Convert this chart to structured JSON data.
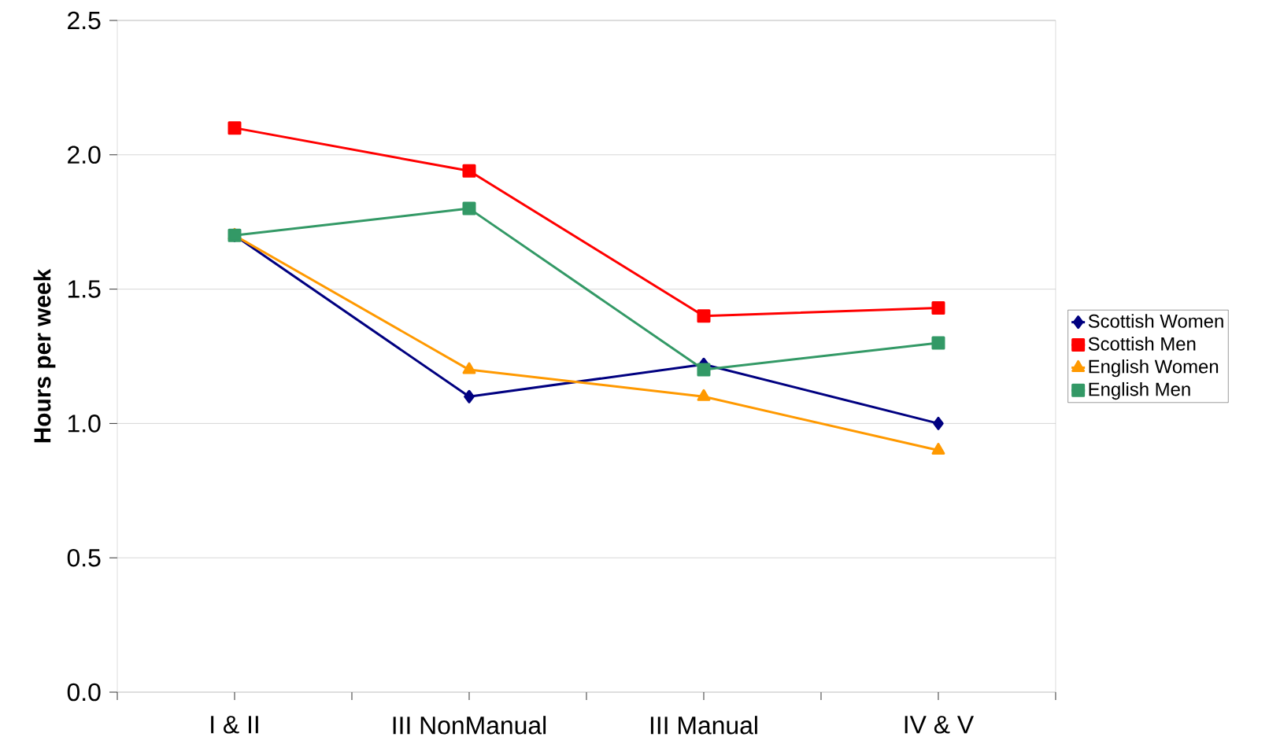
{
  "chart_data": {
    "type": "line",
    "ylabel": "**Hours per week**",
    "categories": [
      "I & II",
      "III NonManual",
      "III Manual",
      "IV & V"
    ],
    "series": [
      {
        "name": "Scottish Women",
        "color": "#000080",
        "marker": "diamond",
        "values": [
          1.7,
          1.1,
          1.22,
          1.0
        ]
      },
      {
        "name": "Scottish Men",
        "color": "#ff0000",
        "marker": "square",
        "values": [
          2.1,
          1.94,
          1.4,
          1.43
        ]
      },
      {
        "name": "English Women",
        "color": "#ff9900",
        "marker": "triangle",
        "values": [
          1.7,
          1.2,
          1.1,
          0.9
        ]
      },
      {
        "name": "English Men",
        "color": "#339966",
        "marker": "square",
        "values": [
          1.7,
          1.8,
          1.2,
          1.3
        ]
      }
    ],
    "ylim": [
      0,
      2.5
    ],
    "yticks": [
      {
        "value": 0,
        "label": "0.0"
      },
      {
        "value": 0.5,
        "label": "0.5"
      },
      {
        "value": 1,
        "label": "1.0"
      },
      {
        "value": 1.5,
        "label": "1.5"
      },
      {
        "value": 2,
        "label": "2.0"
      },
      {
        "value": 2.5,
        "label": "2.5"
      }
    ],
    "grid": "y",
    "legend": "right",
    "line_style": "solid"
  }
}
